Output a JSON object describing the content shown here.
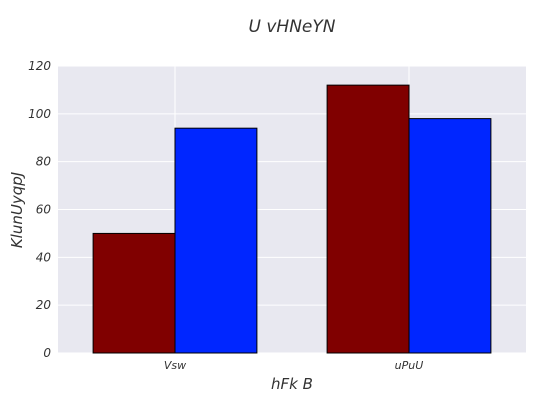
{
  "chart_data": {
    "type": "bar",
    "title": "U vHNeYN",
    "xlabel": "hFk B",
    "ylabel": "KlunUyqpJ",
    "categories": [
      "Vsw",
      "uPuU"
    ],
    "series": [
      {
        "values": [
          50,
          112
        ],
        "color": "#800000"
      },
      {
        "values": [
          94,
          98
        ],
        "color": "#0026ff"
      }
    ],
    "ylim": [
      0,
      120
    ],
    "yticks": [
      0,
      20,
      40,
      60,
      80,
      100,
      120
    ],
    "grid": true,
    "plot_background": "#e8e8f0",
    "grid_color": "#ffffff"
  }
}
